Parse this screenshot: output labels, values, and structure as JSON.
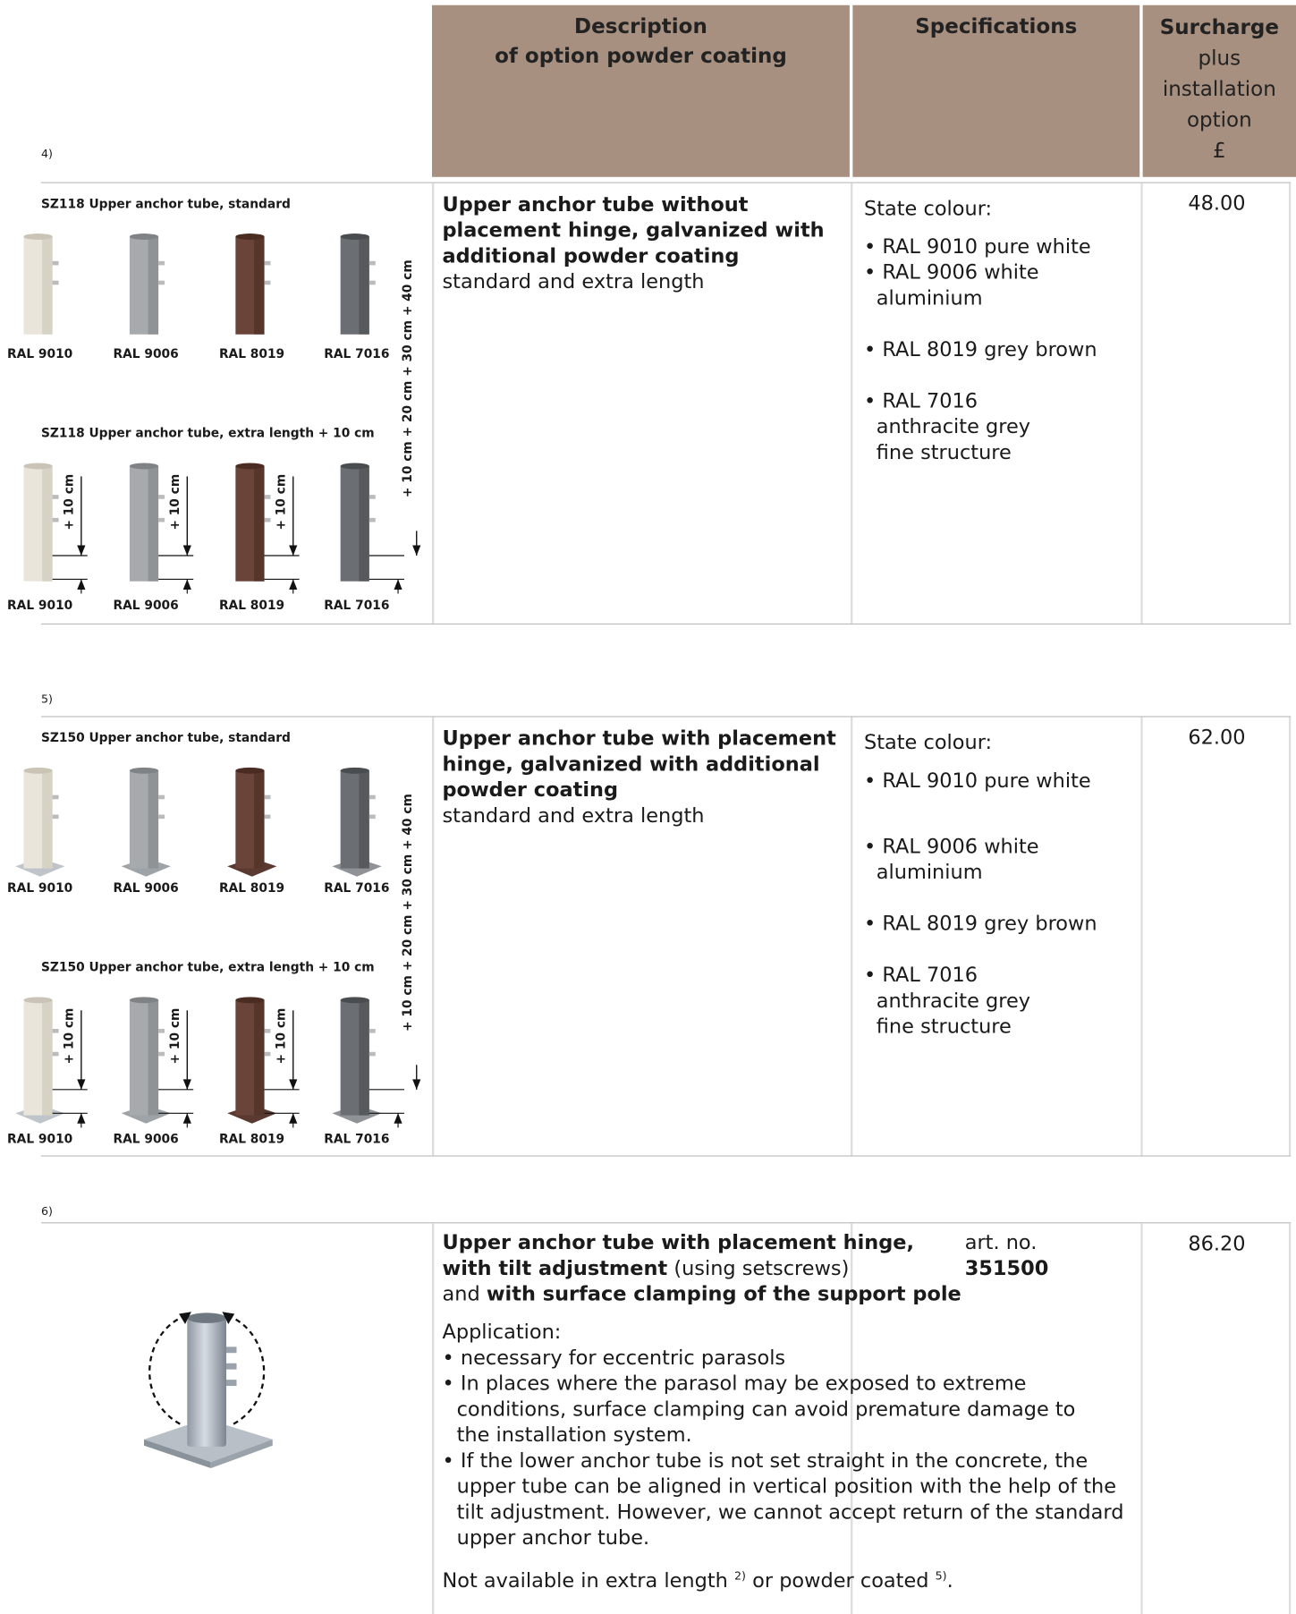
{
  "header": {
    "description": [
      "Description",
      "of option powder coating"
    ],
    "specifications": "Specifications",
    "surcharge": [
      "Surcharge",
      "plus",
      "installation",
      "option",
      "£"
    ]
  },
  "sections": [
    {
      "note": "4)",
      "left": {
        "standard_title": "SZ118 Upper anchor tube, standard",
        "standard_labels": [
          "RAL 9010",
          "RAL 9006",
          "RAL 8019",
          "RAL 7016"
        ],
        "extra_title": "SZ118 Upper anchor tube, extra length + 10 cm",
        "extra_labels": [
          "RAL 9010",
          "RAL 9006",
          "RAL 8019",
          "RAL 7016"
        ],
        "tube_dimension": "+ 10 cm",
        "dimension_label": "+ 10 cm + 20 cm + 30 cm + 40 cm"
      },
      "description": {
        "title": "Upper anchor tube without placement hinge, galvanized with additional powder coating",
        "subtitle": "standard and extra length"
      },
      "specs": {
        "intro": "State colour:",
        "items": [
          "RAL 9010 pure white",
          "RAL 9006 white aluminium",
          "RAL 8019 grey brown",
          "RAL 7016 anthracite grey fine structure"
        ]
      },
      "price": "48.00"
    },
    {
      "note": "5)",
      "left": {
        "standard_title": "SZ150 Upper anchor tube, standard",
        "standard_labels": [
          "RAL 9010",
          "RAL 9006",
          "RAL 8019",
          "RAL 7016"
        ],
        "extra_title": "SZ150 Upper anchor tube, extra length + 10 cm",
        "extra_labels": [
          "RAL 9010",
          "RAL 9006",
          "RAL 8019",
          "RAL 7016"
        ],
        "tube_dimension": "+ 10 cm",
        "dimension_label": "+ 10 cm + 20 cm + 30 cm + 40 cm"
      },
      "description": {
        "title": "Upper anchor tube with placement hinge, galvanized with additional powder coating",
        "subtitle": "standard and extra length"
      },
      "specs": {
        "intro": "State colour:",
        "items": [
          "RAL 9010 pure white",
          "RAL 9006 white aluminium",
          "RAL 8019 grey brown",
          "RAL 7016 anthracite grey fine structure"
        ]
      },
      "price": "62.00"
    },
    {
      "note": "6)",
      "description": {
        "title_parts": [
          "Upper anchor tube with placement hinge,",
          "with tilt adjustment",
          " (using setscrews)",
          "and ",
          "with surface clamping of the support pole"
        ],
        "art_label": "art. no.",
        "art_number": "351500",
        "application_heading": "Application:",
        "bullets": [
          "necessary for eccentric parasols",
          "In places where the parasol may be exposed to extreme conditions, surface clamping can avoid premature damage to the installation system.",
          "If the lower anchor tube is not set straight in the concrete, the upper tube can be aligned in vertical position with the help of the tilt adjustment. However, we cannot accept return of the standard upper anchor tube."
        ],
        "footnote_parts": [
          "Not available in extra length ",
          "2)",
          " or powder coated ",
          "5)",
          "."
        ]
      },
      "price": "86.20"
    }
  ]
}
